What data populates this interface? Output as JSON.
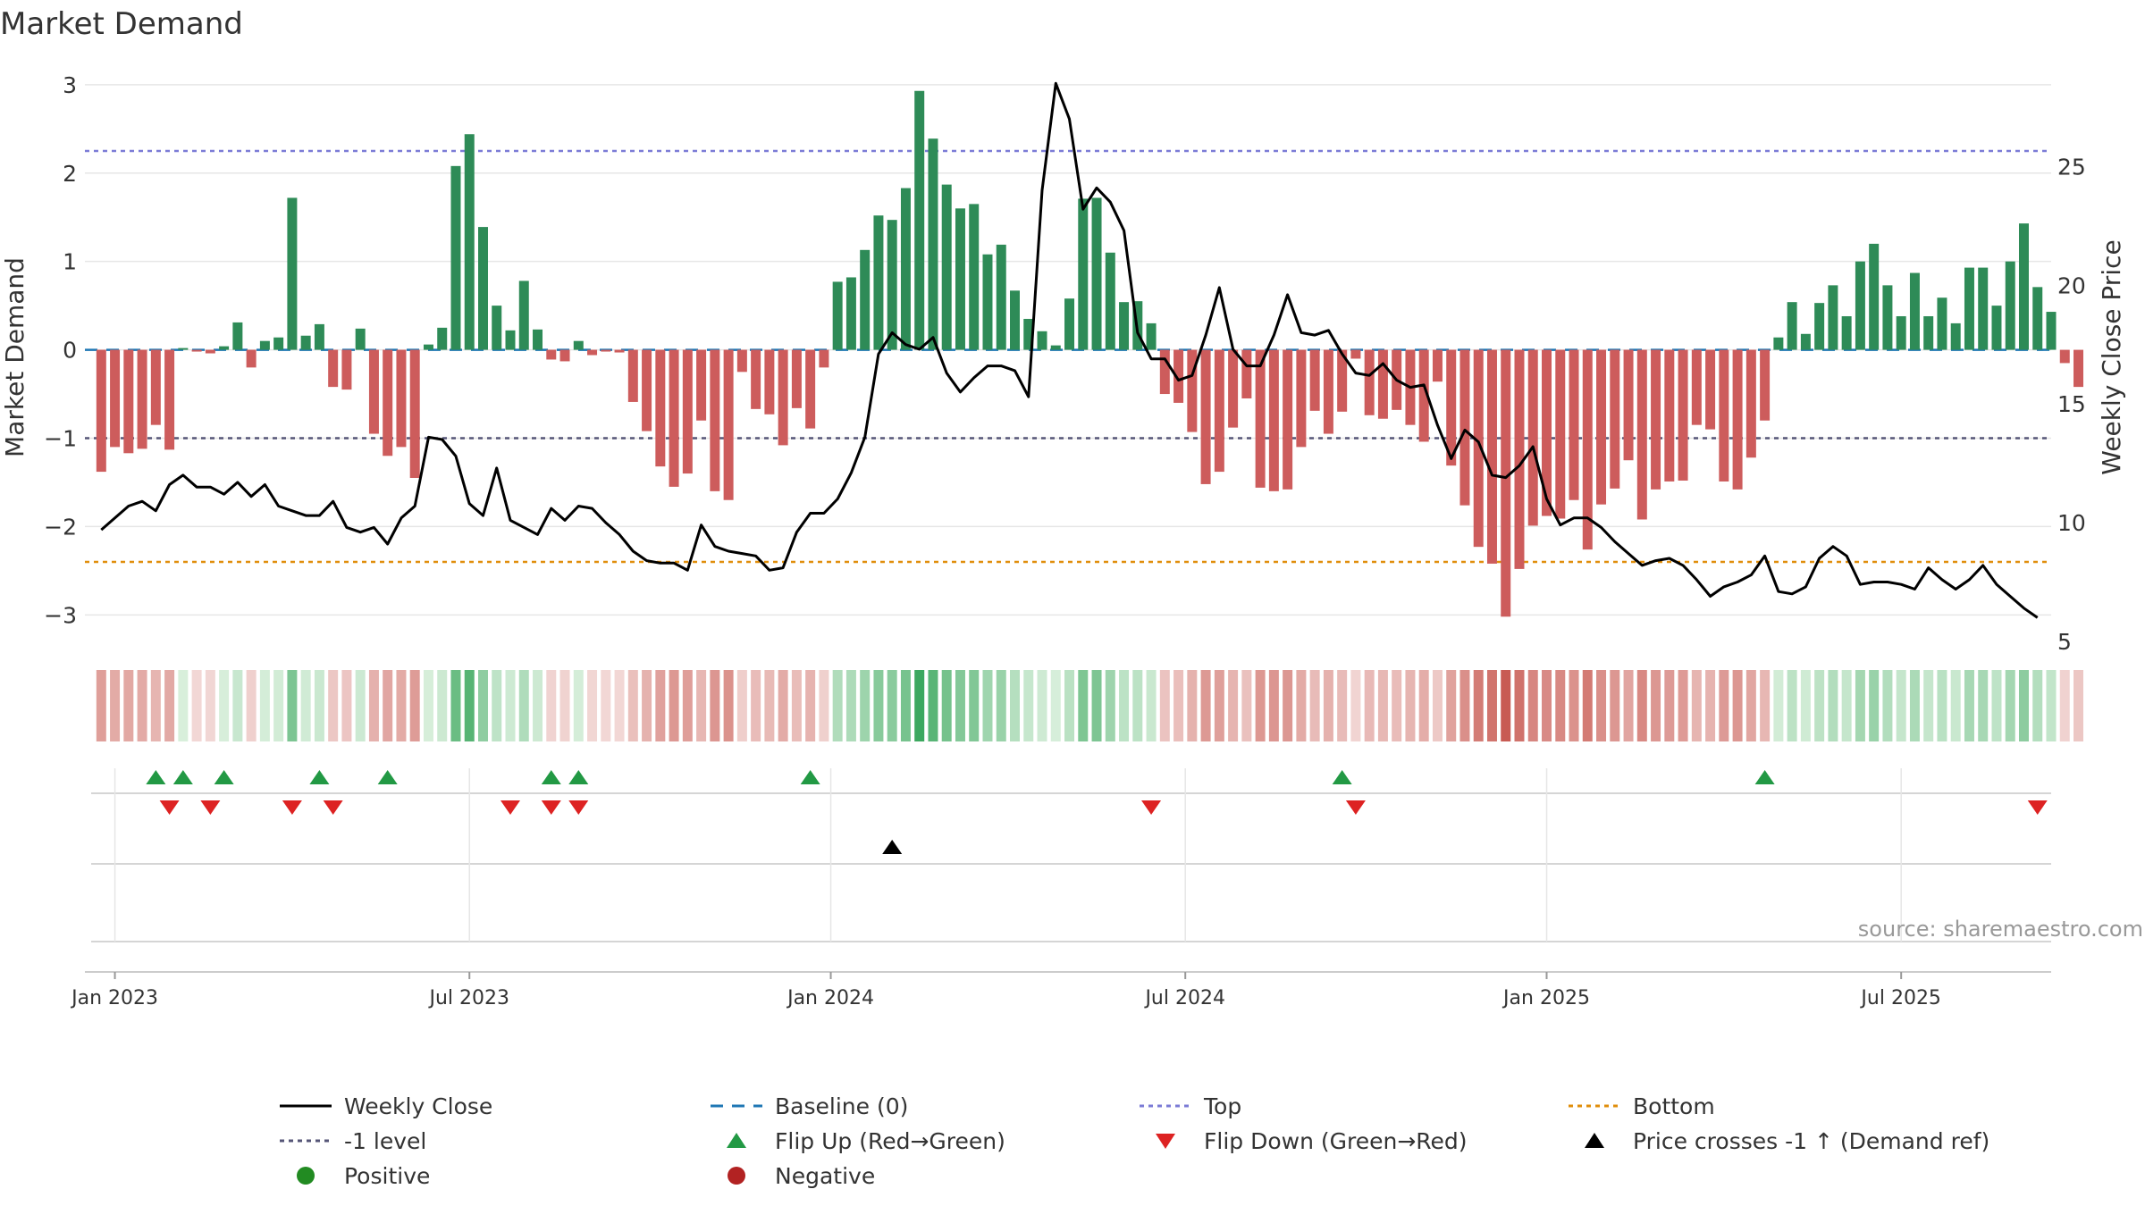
{
  "chart_data": {
    "type": "bar",
    "title": "Market Demand",
    "ylabel": "Market Demand",
    "ylabel_right": "Weekly Close Price",
    "ylim": [
      -3.3,
      3.15
    ],
    "ylim_right": [
      5,
      29
    ],
    "yticks": [
      {
        "v": 3,
        "label": "3"
      },
      {
        "v": 2,
        "label": "2"
      },
      {
        "v": 1,
        "label": "1"
      },
      {
        "v": 0,
        "label": "0"
      },
      {
        "v": -1,
        "label": "−1"
      },
      {
        "v": -2,
        "label": "−2"
      },
      {
        "v": -3,
        "label": "−3"
      }
    ],
    "yticks_right": [
      {
        "v": 25,
        "label": "25"
      },
      {
        "v": 20,
        "label": "20"
      },
      {
        "v": 15,
        "label": "15"
      },
      {
        "v": 10,
        "label": "10"
      },
      {
        "v": 5,
        "label": "5"
      }
    ],
    "xticks": [
      {
        "week": 1,
        "label": "Jan 2023"
      },
      {
        "week": 27,
        "label": "Jul 2023"
      },
      {
        "week": 53.5,
        "label": "Jan 2024"
      },
      {
        "week": 79.5,
        "label": "Jul 2024"
      },
      {
        "week": 106,
        "label": "Jan 2025"
      },
      {
        "week": 132,
        "label": "Jul 2025"
      }
    ],
    "x_range_weeks": [
      -1.2,
      143
    ],
    "reference_lines": {
      "top": 2.25,
      "bottom": -2.4,
      "minus_one": -1.0,
      "baseline": 0
    },
    "demand": [
      -1.38,
      -1.1,
      -1.17,
      -1.12,
      -0.85,
      -1.13,
      0.02,
      -0.02,
      -0.04,
      0.04,
      0.31,
      -0.2,
      0.1,
      0.14,
      1.72,
      0.16,
      0.29,
      -0.42,
      -0.45,
      0.24,
      -0.95,
      -1.2,
      -1.1,
      -1.45,
      0.06,
      0.25,
      2.08,
      2.44,
      1.39,
      0.5,
      0.22,
      0.78,
      0.23,
      -0.11,
      -0.13,
      0.1,
      -0.06,
      -0.02,
      -0.03,
      -0.59,
      -0.92,
      -1.32,
      -1.55,
      -1.4,
      -0.8,
      -1.6,
      -1.7,
      -0.25,
      -0.67,
      -0.73,
      -1.08,
      -0.66,
      -0.89,
      -0.2,
      0.77,
      0.82,
      1.13,
      1.52,
      1.47,
      1.83,
      2.93,
      2.39,
      1.87,
      1.6,
      1.65,
      1.08,
      1.19,
      0.67,
      0.35,
      0.21,
      0.05,
      0.58,
      1.71,
      1.72,
      1.1,
      0.54,
      0.55,
      0.3,
      -0.5,
      -0.6,
      -0.93,
      -1.52,
      -1.38,
      -0.88,
      -0.55,
      -1.56,
      -1.6,
      -1.58,
      -1.1,
      -0.69,
      -0.95,
      -0.7,
      -0.1,
      -0.74,
      -0.78,
      -0.68,
      -0.85,
      -1.04,
      -0.36,
      -1.31,
      -1.76,
      -2.23,
      -2.42,
      -3.02,
      -2.48,
      -1.99,
      -1.88,
      -1.91,
      -1.7,
      -2.26,
      -1.75,
      -1.57,
      -1.25,
      -1.92,
      -1.58,
      -1.49,
      -1.48,
      -0.85,
      -0.9,
      -1.49,
      -1.58,
      -1.22,
      -0.8,
      0.14,
      0.54,
      0.18,
      0.53,
      0.73,
      0.38,
      1.0,
      1.2,
      0.73,
      0.38,
      0.87,
      0.38,
      0.59,
      0.3,
      0.93,
      0.93,
      0.5,
      1.0,
      1.43,
      0.71,
      0.43,
      -0.15,
      -0.42
    ],
    "weekly_close": [
      9.7,
      10.2,
      10.7,
      10.9,
      10.5,
      11.6,
      12.0,
      11.5,
      11.5,
      11.2,
      11.7,
      11.1,
      11.6,
      10.7,
      10.5,
      10.3,
      10.3,
      10.9,
      9.8,
      9.6,
      9.8,
      9.1,
      10.2,
      10.7,
      13.6,
      13.5,
      12.8,
      10.8,
      10.3,
      12.3,
      10.1,
      9.8,
      9.5,
      10.6,
      10.1,
      10.7,
      10.6,
      10.0,
      9.5,
      8.8,
      8.4,
      8.3,
      8.3,
      8.0,
      9.9,
      9.0,
      8.8,
      8.7,
      8.6,
      8.0,
      8.1,
      9.6,
      10.4,
      10.4,
      11.0,
      12.1,
      13.6,
      17.1,
      18.0,
      17.5,
      17.3,
      17.8,
      16.3,
      15.5,
      16.1,
      16.6,
      16.6,
      16.4,
      15.3,
      24.0,
      28.5,
      27.0,
      23.2,
      24.1,
      23.5,
      22.3,
      18.0,
      16.9,
      16.9,
      16.0,
      16.2,
      17.9,
      19.9,
      17.3,
      16.6,
      16.6,
      17.9,
      19.6,
      18.0,
      17.9,
      18.1,
      17.1,
      16.3,
      16.2,
      16.7,
      16.0,
      15.7,
      15.8,
      14.1,
      12.7,
      13.9,
      13.4,
      12.0,
      11.9,
      12.4,
      13.2,
      11.0,
      9.9,
      10.2,
      10.2,
      9.8,
      9.2,
      8.7,
      8.2,
      8.4,
      8.5,
      8.2,
      7.6,
      6.9,
      7.3,
      7.5,
      7.8,
      8.6,
      7.1,
      7.0,
      7.3,
      8.5,
      9.0,
      8.6,
      7.4,
      7.5,
      7.5,
      7.4,
      7.2,
      8.1,
      7.6,
      7.2,
      7.6,
      8.2,
      7.4,
      6.9,
      6.4,
      6.0
    ],
    "flip_up_weeks": [
      4,
      6,
      9,
      16,
      21,
      33,
      35,
      52,
      91,
      122
    ],
    "flip_down_weeks": [
      5,
      8,
      14,
      17,
      30,
      33,
      35,
      77,
      92,
      142
    ],
    "price_cross_weeks": [
      58
    ],
    "legend": [
      [
        "Weekly Close",
        "Baseline (0)",
        "Top",
        "Bottom"
      ],
      [
        "-1 level",
        "Flip Up (Red→Green)",
        "Flip Down (Green→Red)",
        "Price crosses -1 ↑ (Demand ref)"
      ],
      [
        "Positive",
        "Negative"
      ]
    ],
    "source": "source: sharemaestro.com"
  },
  "colors": {
    "positive_bar": "#2e8b57",
    "negative_bar": "#cd5c5c",
    "close_line": "#000000",
    "baseline": "#1f77b4",
    "top_line": "#7b7bd6",
    "bottom_line": "#e08e0b",
    "minus_one_line": "#555577",
    "flip_up": "#229944",
    "flip_down": "#dd2222",
    "positive_dot": "#228b22",
    "negative_dot": "#b22222",
    "grid": "#e6e6e6"
  }
}
